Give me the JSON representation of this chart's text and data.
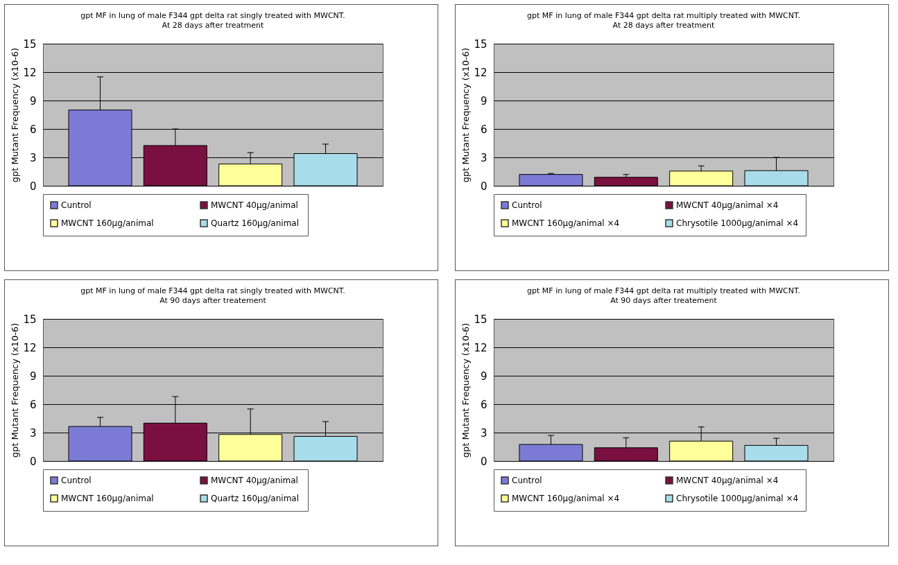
{
  "chart_data": [
    {
      "type": "bar",
      "title": "gpt MF in lung of male F344 gpt delta rat singly treated with MWCNT.",
      "subtitle": "At 28 days after treatment",
      "ylabel": "gpt Mutant Frequency (x10-6)",
      "categories": [
        null
      ],
      "ylim": [
        0,
        15
      ],
      "yticks": [
        0,
        3,
        6,
        9,
        12,
        15
      ],
      "grid": "y",
      "legend": "bottom",
      "tick_labels": "y",
      "series": [
        {
          "name": "Cuntrol",
          "color": "#7b7bd6",
          "values": [
            8.0
          ],
          "errors": [
            [
              8.0,
              11.5
            ]
          ]
        },
        {
          "name": "MWCNT  40μg/animal",
          "color": "#7a1040",
          "values": [
            4.25
          ],
          "errors": [
            [
              4.25,
              6.0
            ]
          ]
        },
        {
          "name": "MWCNT  160μg/animal",
          "color": "#ffff99",
          "values": [
            2.3
          ],
          "errors": [
            [
              2.3,
              3.5
            ]
          ]
        },
        {
          "name": "Quartz 160μg/animal",
          "color": "#a9dcea",
          "values": [
            3.4
          ],
          "errors": [
            [
              3.4,
              4.4
            ]
          ]
        }
      ]
    },
    {
      "type": "bar",
      "title": "gpt MF in lung of male F344 gpt delta rat multiply treated with MWCNT.",
      "subtitle": "At 28 days after treatment",
      "ylabel": "gpt Mutant Frequency (x10-6)",
      "categories": [
        null
      ],
      "ylim": [
        0,
        15
      ],
      "yticks": [
        0,
        3,
        6,
        9,
        12,
        15
      ],
      "grid": "y",
      "legend": "bottom",
      "tick_labels": "y",
      "series": [
        {
          "name": "Cuntrol",
          "color": "#7b7bd6",
          "values": [
            1.2
          ],
          "errors": [
            [
              1.2,
              1.3
            ]
          ]
        },
        {
          "name": "MWCNT  40μg/animal ×4",
          "color": "#7a1040",
          "values": [
            0.9
          ],
          "errors": [
            [
              0.9,
              1.2
            ]
          ]
        },
        {
          "name": "MWCNT  160μg/animal ×4",
          "color": "#ffff99",
          "values": [
            1.55
          ],
          "errors": [
            [
              1.55,
              2.1
            ]
          ]
        },
        {
          "name": "Chrysotile 1000μg/animal ×4",
          "color": "#a9dcea",
          "values": [
            1.6
          ],
          "errors": [
            [
              1.6,
              3.0
            ]
          ]
        }
      ]
    },
    {
      "type": "bar",
      "title": "gpt MF in lung of male F344 gpt delta rat singly treated with MWCNT.",
      "subtitle": "At 90 days after treatement",
      "ylabel": "gpt Mutant Frequency (x10-6)",
      "categories": [
        null
      ],
      "ylim": [
        0,
        15
      ],
      "yticks": [
        0,
        3,
        6,
        9,
        12,
        15
      ],
      "grid": "y",
      "legend": "bottom",
      "tick_labels": "y",
      "series": [
        {
          "name": "Cuntrol",
          "color": "#7b7bd6",
          "values": [
            3.65
          ],
          "errors": [
            [
              3.65,
              4.6
            ]
          ]
        },
        {
          "name": "MWCNT  40μg/animal",
          "color": "#7a1040",
          "values": [
            4.0
          ],
          "errors": [
            [
              4.0,
              6.8
            ]
          ]
        },
        {
          "name": "MWCNT  160μg/animal",
          "color": "#ffff99",
          "values": [
            2.8
          ],
          "errors": [
            [
              2.8,
              5.5
            ]
          ]
        },
        {
          "name": "Quartz 160μg/animal",
          "color": "#a9dcea",
          "values": [
            2.6
          ],
          "errors": [
            [
              2.6,
              4.15
            ]
          ]
        }
      ]
    },
    {
      "type": "bar",
      "title": "gpt MF in lung of male F344 gpt delta rat multiply treated with MWCNT.",
      "subtitle": "At 90 days after treatement",
      "ylabel": "gpt Mutant Frequency (x10-6)",
      "categories": [
        null
      ],
      "ylim": [
        0,
        15
      ],
      "yticks": [
        0,
        3,
        6,
        9,
        12,
        15
      ],
      "grid": "y",
      "legend": "bottom",
      "tick_labels": "y",
      "series": [
        {
          "name": "Cuntrol",
          "color": "#7b7bd6",
          "values": [
            1.75
          ],
          "errors": [
            [
              1.75,
              2.7
            ]
          ]
        },
        {
          "name": "MWCNT  40μg/animal ×4",
          "color": "#7a1040",
          "values": [
            1.4
          ],
          "errors": [
            [
              1.4,
              2.45
            ]
          ]
        },
        {
          "name": "MWCNT  160μg/animal ×4",
          "color": "#ffff99",
          "values": [
            2.1
          ],
          "errors": [
            [
              2.1,
              3.6
            ]
          ]
        },
        {
          "name": "Chrysotile 1000μg/animal ×4",
          "color": "#a9dcea",
          "values": [
            1.65
          ],
          "errors": [
            [
              1.65,
              2.4
            ]
          ]
        }
      ]
    }
  ]
}
